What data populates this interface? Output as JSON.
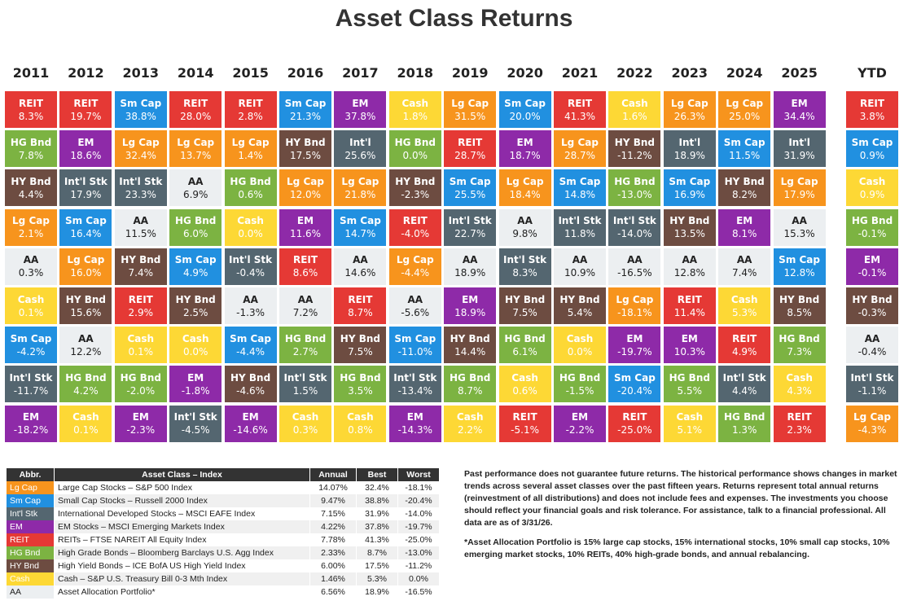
{
  "header": {
    "title": "Asset Class Returns"
  },
  "columns": [
    {
      "year": "2011",
      "cells": [
        {
          "label": "REIT",
          "value": "8.3%",
          "color": "#e53935"
        },
        {
          "label": "HG Bnd",
          "value": "7.8%",
          "color": "#7cb342"
        },
        {
          "label": "HY Bnd",
          "value": "4.4%",
          "color": "#6d4c41"
        },
        {
          "label": "Lg Cap",
          "value": "2.1%",
          "color": "#f7941d"
        },
        {
          "label": "AA",
          "value": "0.3%",
          "color": "#eceff1"
        },
        {
          "label": "Cash",
          "value": "0.1%",
          "color": "#fdd835"
        },
        {
          "label": "Sm Cap",
          "value": "-4.2%",
          "color": "#2190e0"
        },
        {
          "label": "Int'l Stk",
          "value": "-11.7%",
          "color": "#546670"
        },
        {
          "label": "EM",
          "value": "-18.2%",
          "color": "#8e2aa8"
        }
      ]
    },
    {
      "year": "2012",
      "cells": [
        {
          "label": "REIT",
          "value": "19.7%",
          "color": "#e53935"
        },
        {
          "label": "EM",
          "value": "18.6%",
          "color": "#8e2aa8"
        },
        {
          "label": "Int'l Stk",
          "value": "17.9%",
          "color": "#546670"
        },
        {
          "label": "Sm Cap",
          "value": "16.4%",
          "color": "#2190e0"
        },
        {
          "label": "Lg Cap",
          "value": "16.0%",
          "color": "#f7941d"
        },
        {
          "label": "HY Bnd",
          "value": "15.6%",
          "color": "#6d4c41"
        },
        {
          "label": "AA",
          "value": "12.2%",
          "color": "#eceff1"
        },
        {
          "label": "HG Bnd",
          "value": "4.2%",
          "color": "#7cb342"
        },
        {
          "label": "Cash",
          "value": "0.1%",
          "color": "#fdd835"
        }
      ]
    },
    {
      "year": "2013",
      "cells": [
        {
          "label": "Sm Cap",
          "value": "38.8%",
          "color": "#2190e0"
        },
        {
          "label": "Lg Cap",
          "value": "32.4%",
          "color": "#f7941d"
        },
        {
          "label": "Int'l Stk",
          "value": "23.3%",
          "color": "#546670"
        },
        {
          "label": "AA",
          "value": "11.5%",
          "color": "#eceff1"
        },
        {
          "label": "HY Bnd",
          "value": "7.4%",
          "color": "#6d4c41"
        },
        {
          "label": "REIT",
          "value": "2.9%",
          "color": "#e53935"
        },
        {
          "label": "Cash",
          "value": "0.1%",
          "color": "#fdd835"
        },
        {
          "label": "HG Bnd",
          "value": "-2.0%",
          "color": "#7cb342"
        },
        {
          "label": "EM",
          "value": "-2.3%",
          "color": "#8e2aa8"
        }
      ]
    },
    {
      "year": "2014",
      "cells": [
        {
          "label": "REIT",
          "value": "28.0%",
          "color": "#e53935"
        },
        {
          "label": "Lg Cap",
          "value": "13.7%",
          "color": "#f7941d"
        },
        {
          "label": "AA",
          "value": "6.9%",
          "color": "#eceff1"
        },
        {
          "label": "HG Bnd",
          "value": "6.0%",
          "color": "#7cb342"
        },
        {
          "label": "Sm Cap",
          "value": "4.9%",
          "color": "#2190e0"
        },
        {
          "label": "HY Bnd",
          "value": "2.5%",
          "color": "#6d4c41"
        },
        {
          "label": "Cash",
          "value": "0.0%",
          "color": "#fdd835"
        },
        {
          "label": "EM",
          "value": "-1.8%",
          "color": "#8e2aa8"
        },
        {
          "label": "Int'l Stk",
          "value": "-4.5%",
          "color": "#546670"
        }
      ]
    },
    {
      "year": "2015",
      "cells": [
        {
          "label": "REIT",
          "value": "2.8%",
          "color": "#e53935"
        },
        {
          "label": "Lg Cap",
          "value": "1.4%",
          "color": "#f7941d"
        },
        {
          "label": "HG Bnd",
          "value": "0.6%",
          "color": "#7cb342"
        },
        {
          "label": "Cash",
          "value": "0.0%",
          "color": "#fdd835"
        },
        {
          "label": "Int'l Stk",
          "value": "-0.4%",
          "color": "#546670"
        },
        {
          "label": "AA",
          "value": "-1.3%",
          "color": "#eceff1"
        },
        {
          "label": "Sm Cap",
          "value": "-4.4%",
          "color": "#2190e0"
        },
        {
          "label": "HY Bnd",
          "value": "-4.6%",
          "color": "#6d4c41"
        },
        {
          "label": "EM",
          "value": "-14.6%",
          "color": "#8e2aa8"
        }
      ]
    },
    {
      "year": "2016",
      "cells": [
        {
          "label": "Sm Cap",
          "value": "21.3%",
          "color": "#2190e0"
        },
        {
          "label": "HY Bnd",
          "value": "17.5%",
          "color": "#6d4c41"
        },
        {
          "label": "Lg Cap",
          "value": "12.0%",
          "color": "#f7941d"
        },
        {
          "label": "EM",
          "value": "11.6%",
          "color": "#8e2aa8"
        },
        {
          "label": "REIT",
          "value": "8.6%",
          "color": "#e53935"
        },
        {
          "label": "AA",
          "value": "7.2%",
          "color": "#eceff1"
        },
        {
          "label": "HG Bnd",
          "value": "2.7%",
          "color": "#7cb342"
        },
        {
          "label": "Int'l Stk",
          "value": "1.5%",
          "color": "#546670"
        },
        {
          "label": "Cash",
          "value": "0.3%",
          "color": "#fdd835"
        }
      ]
    },
    {
      "year": "2017",
      "cells": [
        {
          "label": "EM",
          "value": "37.8%",
          "color": "#8e2aa8"
        },
        {
          "label": "Int'l",
          "value": "25.6%",
          "color": "#546670"
        },
        {
          "label": "Lg Cap",
          "value": "21.8%",
          "color": "#f7941d"
        },
        {
          "label": "Sm Cap",
          "value": "14.7%",
          "color": "#2190e0"
        },
        {
          "label": "AA",
          "value": "14.6%",
          "color": "#eceff1"
        },
        {
          "label": "REIT",
          "value": "8.7%",
          "color": "#e53935"
        },
        {
          "label": "HY Bnd",
          "value": "7.5%",
          "color": "#6d4c41"
        },
        {
          "label": "HG Bnd",
          "value": "3.5%",
          "color": "#7cb342"
        },
        {
          "label": "Cash",
          "value": "0.8%",
          "color": "#fdd835"
        }
      ]
    },
    {
      "year": "2018",
      "cells": [
        {
          "label": "Cash",
          "value": "1.8%",
          "color": "#fdd835"
        },
        {
          "label": "HG Bnd",
          "value": "0.0%",
          "color": "#7cb342"
        },
        {
          "label": "HY Bnd",
          "value": "-2.3%",
          "color": "#6d4c41"
        },
        {
          "label": "REIT",
          "value": "-4.0%",
          "color": "#e53935"
        },
        {
          "label": "Lg Cap",
          "value": "-4.4%",
          "color": "#f7941d"
        },
        {
          "label": "AA",
          "value": "-5.6%",
          "color": "#eceff1"
        },
        {
          "label": "Sm Cap",
          "value": "-11.0%",
          "color": "#2190e0"
        },
        {
          "label": "Int'l Stk",
          "value": "-13.4%",
          "color": "#546670"
        },
        {
          "label": "EM",
          "value": "-14.3%",
          "color": "#8e2aa8"
        }
      ]
    },
    {
      "year": "2019",
      "cells": [
        {
          "label": "Lg Cap",
          "value": "31.5%",
          "color": "#f7941d"
        },
        {
          "label": "REIT",
          "value": "28.7%",
          "color": "#e53935"
        },
        {
          "label": "Sm Cap",
          "value": "25.5%",
          "color": "#2190e0"
        },
        {
          "label": "Int'l Stk",
          "value": "22.7%",
          "color": "#546670"
        },
        {
          "label": "AA",
          "value": "18.9%",
          "color": "#eceff1"
        },
        {
          "label": "EM",
          "value": "18.9%",
          "color": "#8e2aa8"
        },
        {
          "label": "HY Bnd",
          "value": "14.4%",
          "color": "#6d4c41"
        },
        {
          "label": "HG Bnd",
          "value": "8.7%",
          "color": "#7cb342"
        },
        {
          "label": "Cash",
          "value": "2.2%",
          "color": "#fdd835"
        }
      ]
    },
    {
      "year": "2020",
      "cells": [
        {
          "label": "Sm Cap",
          "value": "20.0%",
          "color": "#2190e0"
        },
        {
          "label": "EM",
          "value": "18.7%",
          "color": "#8e2aa8"
        },
        {
          "label": "Lg Cap",
          "value": "18.4%",
          "color": "#f7941d"
        },
        {
          "label": "AA",
          "value": "9.8%",
          "color": "#eceff1"
        },
        {
          "label": "Int'l Stk",
          "value": "8.3%",
          "color": "#546670"
        },
        {
          "label": "HY Bnd",
          "value": "7.5%",
          "color": "#6d4c41"
        },
        {
          "label": "HG Bnd",
          "value": "6.1%",
          "color": "#7cb342"
        },
        {
          "label": "Cash",
          "value": "0.6%",
          "color": "#fdd835"
        },
        {
          "label": "REIT",
          "value": "-5.1%",
          "color": "#e53935"
        }
      ]
    },
    {
      "year": "2021",
      "cells": [
        {
          "label": "REIT",
          "value": "41.3%",
          "color": "#e53935"
        },
        {
          "label": "Lg Cap",
          "value": "28.7%",
          "color": "#f7941d"
        },
        {
          "label": "Sm Cap",
          "value": "14.8%",
          "color": "#2190e0"
        },
        {
          "label": "Int'l Stk",
          "value": "11.8%",
          "color": "#546670"
        },
        {
          "label": "AA",
          "value": "10.9%",
          "color": "#eceff1"
        },
        {
          "label": "HY Bnd",
          "value": "5.4%",
          "color": "#6d4c41"
        },
        {
          "label": "Cash",
          "value": "0.0%",
          "color": "#fdd835"
        },
        {
          "label": "HG Bnd",
          "value": "-1.5%",
          "color": "#7cb342"
        },
        {
          "label": "EM",
          "value": "-2.2%",
          "color": "#8e2aa8"
        }
      ]
    },
    {
      "year": "2022",
      "cells": [
        {
          "label": "Cash",
          "value": "1.6%",
          "color": "#fdd835"
        },
        {
          "label": "HY Bnd",
          "value": "-11.2%",
          "color": "#6d4c41"
        },
        {
          "label": "HG Bnd",
          "value": "-13.0%",
          "color": "#7cb342"
        },
        {
          "label": "Int'l Stk",
          "value": "-14.0%",
          "color": "#546670"
        },
        {
          "label": "AA",
          "value": "-16.5%",
          "color": "#eceff1"
        },
        {
          "label": "Lg Cap",
          "value": "-18.1%",
          "color": "#f7941d"
        },
        {
          "label": "EM",
          "value": "-19.7%",
          "color": "#8e2aa8"
        },
        {
          "label": "Sm Cap",
          "value": "-20.4%",
          "color": "#2190e0"
        },
        {
          "label": "REIT",
          "value": "-25.0%",
          "color": "#e53935"
        }
      ]
    },
    {
      "year": "2023",
      "cells": [
        {
          "label": "Lg Cap",
          "value": "26.3%",
          "color": "#f7941d"
        },
        {
          "label": "Int'l",
          "value": "18.9%",
          "color": "#546670"
        },
        {
          "label": "Sm Cap",
          "value": "16.9%",
          "color": "#2190e0"
        },
        {
          "label": "HY Bnd",
          "value": "13.5%",
          "color": "#6d4c41"
        },
        {
          "label": "AA",
          "value": "12.8%",
          "color": "#eceff1"
        },
        {
          "label": "REIT",
          "value": "11.4%",
          "color": "#e53935"
        },
        {
          "label": "EM",
          "value": "10.3%",
          "color": "#8e2aa8"
        },
        {
          "label": "HG Bnd",
          "value": "5.5%",
          "color": "#7cb342"
        },
        {
          "label": "Cash",
          "value": "5.1%",
          "color": "#fdd835"
        }
      ]
    },
    {
      "year": "2024",
      "cells": [
        {
          "label": "Lg Cap",
          "value": "25.0%",
          "color": "#f7941d"
        },
        {
          "label": "Sm Cap",
          "value": "11.5%",
          "color": "#2190e0"
        },
        {
          "label": "HY Bnd",
          "value": "8.2%",
          "color": "#6d4c41"
        },
        {
          "label": "EM",
          "value": "8.1%",
          "color": "#8e2aa8"
        },
        {
          "label": "AA",
          "value": "7.4%",
          "color": "#eceff1"
        },
        {
          "label": "Cash",
          "value": "5.3%",
          "color": "#fdd835"
        },
        {
          "label": "REIT",
          "value": "4.9%",
          "color": "#e53935"
        },
        {
          "label": "Int'l Stk",
          "value": "4.4%",
          "color": "#546670"
        },
        {
          "label": "HG Bnd",
          "value": "1.3%",
          "color": "#7cb342"
        }
      ]
    },
    {
      "year": "2025",
      "cells": [
        {
          "label": "EM",
          "value": "34.4%",
          "color": "#8e2aa8"
        },
        {
          "label": "Int'l",
          "value": "31.9%",
          "color": "#546670"
        },
        {
          "label": "Lg Cap",
          "value": "17.9%",
          "color": "#f7941d"
        },
        {
          "label": "AA",
          "value": "15.3%",
          "color": "#eceff1"
        },
        {
          "label": "Sm Cap",
          "value": "12.8%",
          "color": "#2190e0"
        },
        {
          "label": "HY Bnd",
          "value": "8.5%",
          "color": "#6d4c41"
        },
        {
          "label": "HG Bnd",
          "value": "7.3%",
          "color": "#7cb342"
        },
        {
          "label": "Cash",
          "value": "4.3%",
          "color": "#fdd835"
        },
        {
          "label": "REIT",
          "value": "2.3%",
          "color": "#e53935"
        }
      ]
    },
    {
      "year": "YTD",
      "cells": [
        {
          "label": "REIT",
          "value": "3.8%",
          "color": "#e53935"
        },
        {
          "label": "Sm Cap",
          "value": "0.9%",
          "color": "#2190e0"
        },
        {
          "label": "Cash",
          "value": "0.9%",
          "color": "#fdd835"
        },
        {
          "label": "HG Bnd",
          "value": "-0.1%",
          "color": "#7cb342"
        },
        {
          "label": "EM",
          "value": "-0.1%",
          "color": "#8e2aa8"
        },
        {
          "label": "HY Bnd",
          "value": "-0.3%",
          "color": "#6d4c41"
        },
        {
          "label": "AA",
          "value": "-0.4%",
          "color": "#eceff1"
        },
        {
          "label": "Int'l Stk",
          "value": "-1.1%",
          "color": "#546670"
        },
        {
          "label": "Lg Cap",
          "value": "-4.3%",
          "color": "#f7941d"
        }
      ]
    }
  ],
  "legend": {
    "headers": [
      "Abbr.",
      "Asset Class – Index",
      "Annual",
      "Best",
      "Worst"
    ],
    "rows": [
      {
        "abbr": "Lg Cap",
        "name": "Large Cap Stocks – S&P 500 Index",
        "annual": "14.07%",
        "best": "32.4%",
        "worst": "-18.1%",
        "color": "#f7941d"
      },
      {
        "abbr": "Sm Cap",
        "name": "Small Cap Stocks – Russell 2000 Index",
        "annual": "9.47%",
        "best": "38.8%",
        "worst": "-20.4%",
        "color": "#2190e0"
      },
      {
        "abbr": "Int'l Stk",
        "name": "International Developed Stocks – MSCI EAFE Index",
        "annual": "7.15%",
        "best": "31.9%",
        "worst": "-14.0%",
        "color": "#546670"
      },
      {
        "abbr": "EM",
        "name": "EM Stocks – MSCI Emerging Markets Index",
        "annual": "4.22%",
        "best": "37.8%",
        "worst": "-19.7%",
        "color": "#8e2aa8"
      },
      {
        "abbr": "REIT",
        "name": "REITs – FTSE NAREIT All Equity Index",
        "annual": "7.78%",
        "best": "41.3%",
        "worst": "-25.0%",
        "color": "#e53935"
      },
      {
        "abbr": "HG Bnd",
        "name": "High Grade Bonds – Bloomberg Barclays U.S. Agg Index",
        "annual": "2.33%",
        "best": "8.7%",
        "worst": "-13.0%",
        "color": "#7cb342"
      },
      {
        "abbr": "HY Bnd",
        "name": "High Yield Bonds – ICE BofA US High Yield Index",
        "annual": "6.00%",
        "best": "17.5%",
        "worst": "-11.2%",
        "color": "#6d4c41"
      },
      {
        "abbr": "Cash",
        "name": "Cash – S&P U.S. Treasury Bill 0-3 Mth Index",
        "annual": "1.46%",
        "best": "5.3%",
        "worst": "0.0%",
        "color": "#fdd835"
      },
      {
        "abbr": "AA",
        "name": "Asset Allocation Portfolio*",
        "annual": "6.56%",
        "best": "18.9%",
        "worst": "-16.5%",
        "color": "#eceff1"
      }
    ]
  },
  "notes": [
    "Past performance does not guarantee future returns. The historical performance shows changes in market trends across several asset classes over the past fifteen years. Returns represent total annual returns (reinvestment of all distributions) and does not include fees and expenses. The investments you choose should reflect your financial goals and risk tolerance. For assistance, talk to a financial professional. All data are as of 3/31/26.",
    "*Asset Allocation Portfolio is 15% large cap stocks, 15% international stocks, 10% small cap stocks, 10% emerging market stocks, 10% REITs, 40% high-grade bonds, and annual rebalancing."
  ]
}
